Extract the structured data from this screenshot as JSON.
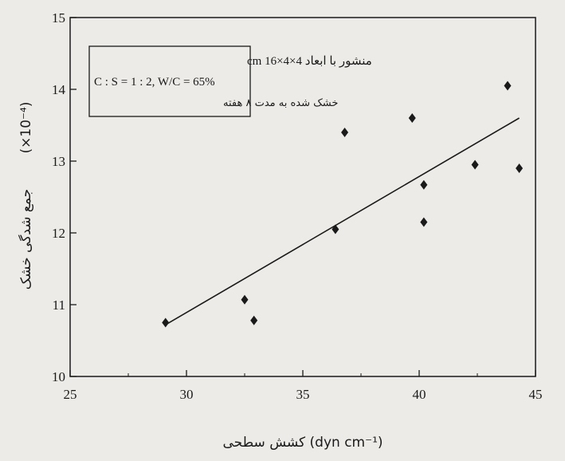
{
  "chart_data": {
    "type": "scatter",
    "title": "",
    "xlabel": "کشش سطحی (dyn cm⁻¹)",
    "ylabel": "جمع شدگی خشک",
    "ylabel_multiplier": "(×10⁻⁴)",
    "xlim": [
      25,
      45
    ],
    "ylim": [
      10,
      15
    ],
    "x_ticks": [
      25,
      30,
      35,
      40,
      45
    ],
    "y_ticks": [
      10,
      11,
      12,
      13,
      14,
      15
    ],
    "points": [
      {
        "x": 29.1,
        "y": 10.75
      },
      {
        "x": 32.5,
        "y": 11.07
      },
      {
        "x": 32.9,
        "y": 10.78
      },
      {
        "x": 36.4,
        "y": 12.05
      },
      {
        "x": 36.8,
        "y": 13.4
      },
      {
        "x": 39.7,
        "y": 13.6
      },
      {
        "x": 40.2,
        "y": 12.67
      },
      {
        "x": 40.2,
        "y": 12.15
      },
      {
        "x": 42.4,
        "y": 12.95
      },
      {
        "x": 43.8,
        "y": 14.05
      },
      {
        "x": 44.3,
        "y": 12.9
      }
    ],
    "trendline": {
      "x1": 29.1,
      "y1": 10.72,
      "x2": 44.3,
      "y2": 13.6
    },
    "legend": {
      "line1": "منشور با ابعاد 4×4×16 cm",
      "line2": "C : S = 1 : 2, W/C = 65%",
      "line3": "خشک شده به مدت ۸ هفته"
    },
    "grid": false
  }
}
